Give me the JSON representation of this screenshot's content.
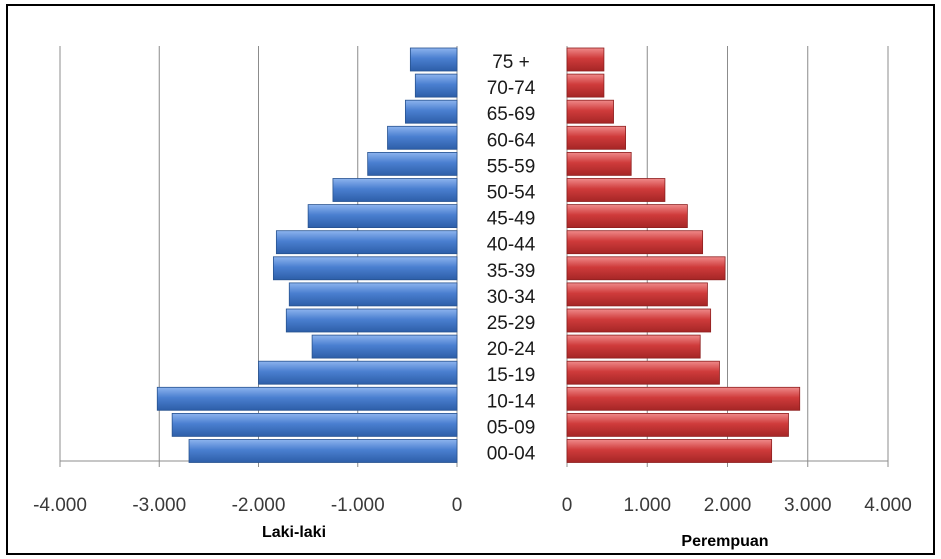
{
  "chart_data": [
    {
      "type": "bar",
      "orientation": "horizontal",
      "xlabel": "Laki-laki",
      "xlim": [
        -4000,
        0
      ],
      "xticks": [
        "-4.000",
        "-3.000",
        "-2.000",
        "-1.000",
        "0"
      ],
      "grid": true,
      "color": "#4a7fd0",
      "categories": [
        "00-04",
        "05-09",
        "10-14",
        "15-19",
        "20-24",
        "25-29",
        "30-34",
        "35-39",
        "40-44",
        "45-49",
        "50-54",
        "55-59",
        "60-64",
        "65-69",
        "70-74",
        "75 +"
      ],
      "values": [
        -2700,
        -2870,
        -3020,
        -2000,
        -1460,
        -1720,
        -1690,
        -1850,
        -1820,
        -1500,
        -1250,
        -900,
        -700,
        -520,
        -420,
        -470
      ]
    },
    {
      "type": "bar",
      "orientation": "horizontal",
      "xlabel": "Perempuan",
      "xlim": [
        0,
        4000
      ],
      "xticks": [
        "0",
        "1.000",
        "2.000",
        "3.000",
        "4.000"
      ],
      "grid": true,
      "color": "#cf3b3b",
      "categories": [
        "00-04",
        "05-09",
        "10-14",
        "15-19",
        "20-24",
        "25-29",
        "30-34",
        "35-39",
        "40-44",
        "45-49",
        "50-54",
        "55-59",
        "60-64",
        "65-69",
        "70-74",
        "75 +"
      ],
      "values": [
        2550,
        2760,
        2900,
        1900,
        1660,
        1790,
        1750,
        1970,
        1690,
        1500,
        1220,
        800,
        730,
        580,
        460,
        460
      ]
    }
  ]
}
